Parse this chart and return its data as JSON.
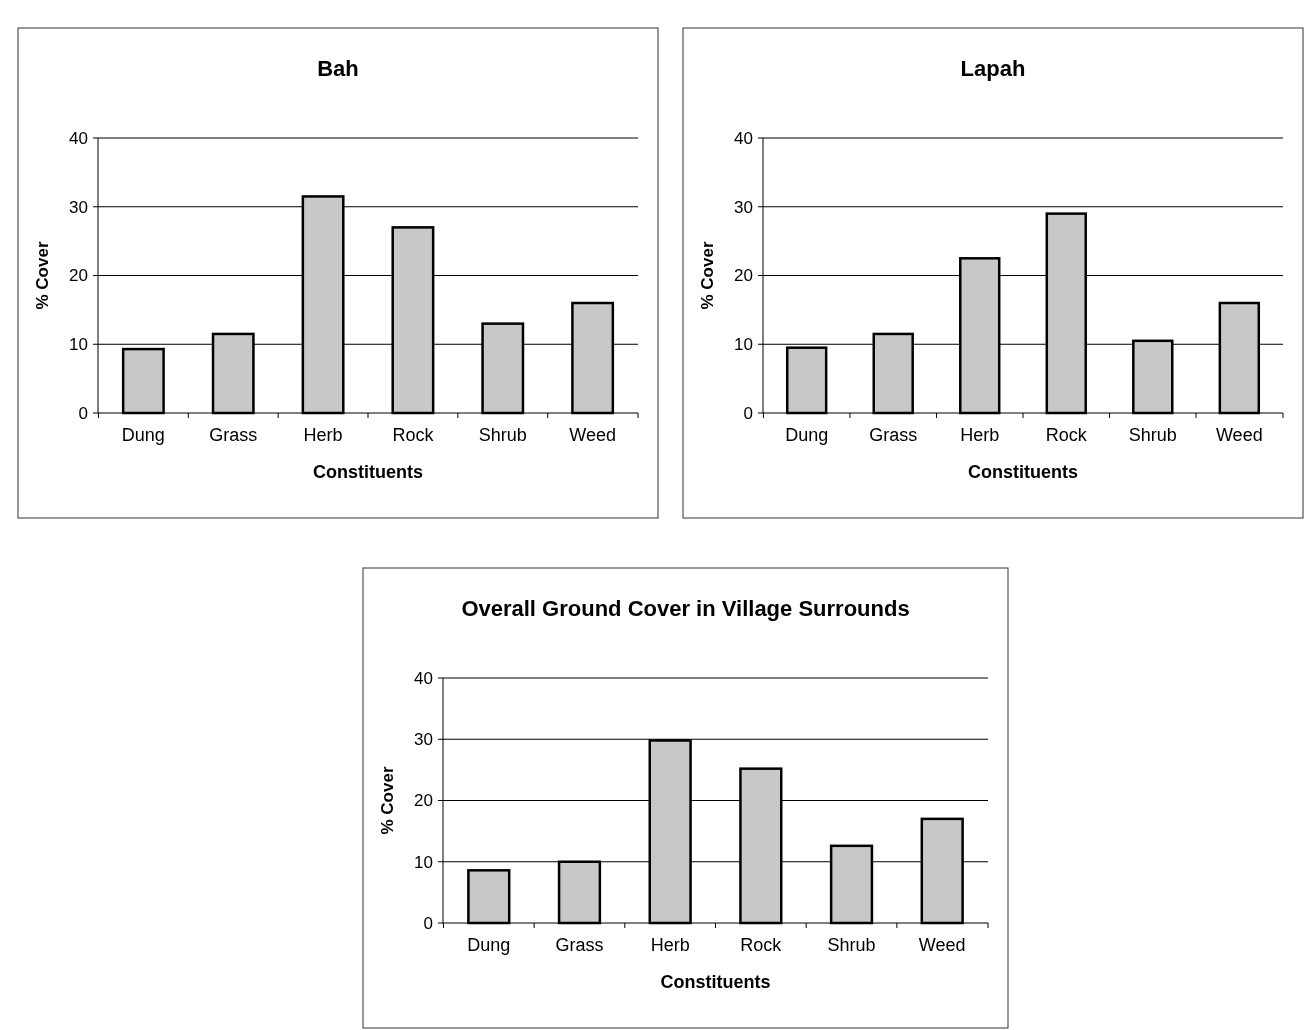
{
  "chart_data": [
    {
      "type": "bar",
      "title": "Bah",
      "xlabel": "Constituents",
      "ylabel": "% Cover",
      "categories": [
        "Dung",
        "Grass",
        "Herb",
        "Rock",
        "Shrub",
        "Weed"
      ],
      "values": [
        9.3,
        11.5,
        31.5,
        27,
        13,
        16
      ],
      "color": "#c8c8c8",
      "ylim": [
        0,
        40
      ],
      "yticks": [
        0,
        10,
        20,
        30,
        40
      ],
      "grid": "y"
    },
    {
      "type": "bar",
      "title": "Lapah",
      "xlabel": "Constituents",
      "ylabel": "% Cover",
      "categories": [
        "Dung",
        "Grass",
        "Herb",
        "Rock",
        "Shrub",
        "Weed"
      ],
      "values": [
        9.5,
        11.5,
        22.5,
        29,
        10.5,
        16
      ],
      "color": "#c8c8c8",
      "ylim": [
        0,
        40
      ],
      "yticks": [
        0,
        10,
        20,
        30,
        40
      ],
      "grid": "y"
    },
    {
      "type": "bar",
      "title": "Overall Ground Cover in Village Surrounds",
      "xlabel": "Constituents",
      "ylabel": "% Cover",
      "categories": [
        "Dung",
        "Grass",
        "Herb",
        "Rock",
        "Shrub",
        "Weed"
      ],
      "values": [
        8.6,
        10,
        29.8,
        25.2,
        12.6,
        17
      ],
      "color": "#c8c8c8",
      "ylim": [
        0,
        40
      ],
      "yticks": [
        0,
        10,
        20,
        30,
        40
      ],
      "grid": "y"
    }
  ]
}
